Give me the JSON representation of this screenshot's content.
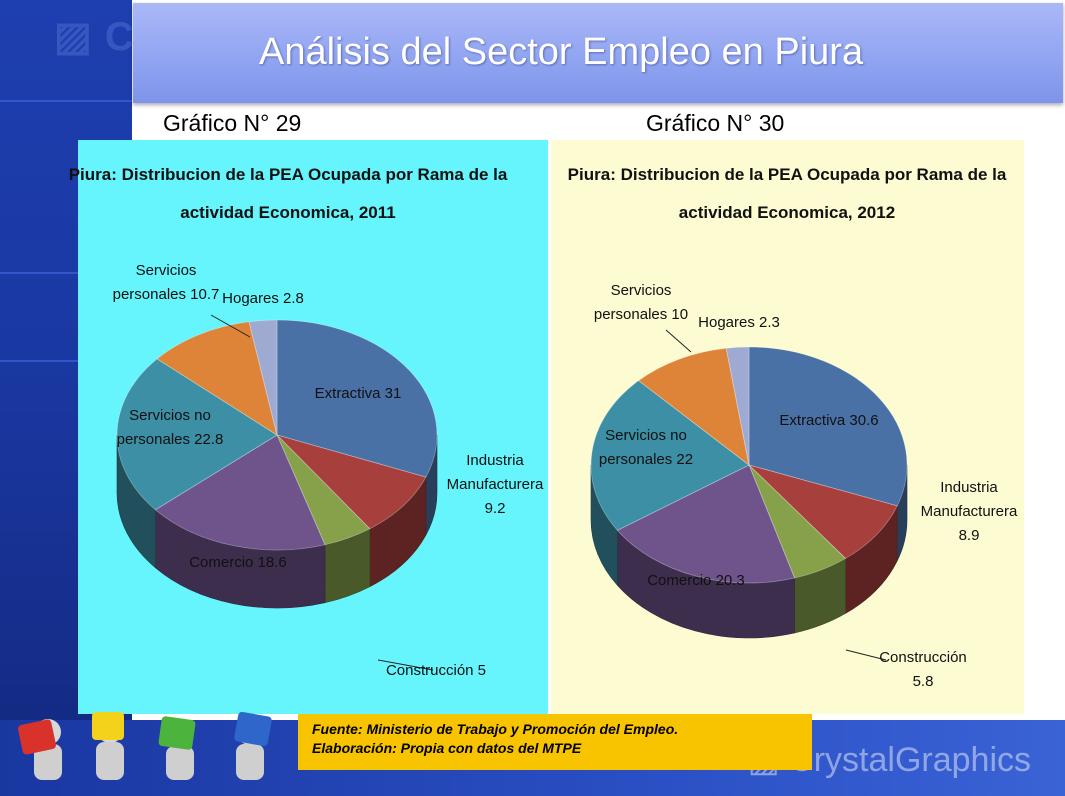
{
  "title": "Análisis del Sector Empleo en Piura",
  "chart_labels": [
    "Gráfico N° 29",
    "Gráfico N° 30"
  ],
  "source": {
    "line1": "Fuente: Ministerio de Trabajo y Promoción del Empleo.",
    "line2": "Elaboración: Propia con datos del MTPE"
  },
  "colors": {
    "panel_left_bg": "#66f5fc",
    "panel_right_bg": "#fdfbd2",
    "title_bar": "#8fa3f1",
    "source_box": "#f8c400"
  },
  "chart_data": [
    {
      "type": "pie",
      "title": "Piura: Distribucion de la PEA Ocupada por Rama de la actividad Economica, 2011",
      "title_lines": [
        "Piura: Distribucion de la PEA Ocupada por Rama de la",
        "actividad Economica, 2011"
      ],
      "slices": [
        {
          "label": "Extractiva",
          "value": 31,
          "label_lines": [
            "Extractiva 31"
          ],
          "color": "#4a71a5"
        },
        {
          "label": "Industria Manufacturera",
          "value": 9.2,
          "label_lines": [
            "Industria",
            "Manufacturera",
            "9.2"
          ],
          "color": "#a7403d"
        },
        {
          "label": "Construcción",
          "value": 5,
          "label_lines": [
            "Construcción 5"
          ],
          "color": "#87a14b"
        },
        {
          "label": "Comercio",
          "value": 18.6,
          "label_lines": [
            "Comercio 18.6"
          ],
          "color": "#6f548c"
        },
        {
          "label": "Servicios no personales",
          "value": 22.8,
          "label_lines": [
            "Servicios no",
            "personales 22.8"
          ],
          "color": "#3c8fa5"
        },
        {
          "label": "Servicios personales",
          "value": 10.7,
          "label_lines": [
            "Servicios",
            "personales 10.7"
          ],
          "color": "#de8439"
        },
        {
          "label": "Hogares",
          "value": 2.8,
          "label_lines": [
            "Hogares 2.8"
          ],
          "color": "#9eaad2"
        }
      ]
    },
    {
      "type": "pie",
      "title": "Piura: Distribucion de la PEA Ocupada por Rama de la actividad Economica, 2012",
      "title_lines": [
        "Piura: Distribucion de la PEA Ocupada por Rama de la",
        "actividad Economica, 2012"
      ],
      "slices": [
        {
          "label": "Extractiva",
          "value": 30.6,
          "label_lines": [
            "Extractiva 30.6"
          ],
          "color": "#4a71a5"
        },
        {
          "label": "Industria Manufacturera",
          "value": 8.9,
          "label_lines": [
            "Industria",
            "Manufacturera",
            "8.9"
          ],
          "color": "#a7403d"
        },
        {
          "label": "Construcción",
          "value": 5.8,
          "label_lines": [
            "Construcción",
            "5.8"
          ],
          "color": "#87a14b"
        },
        {
          "label": "Comercio",
          "value": 20.3,
          "label_lines": [
            "Comercio 20.3"
          ],
          "color": "#6f548c"
        },
        {
          "label": "Servicios no personales",
          "value": 22,
          "label_lines": [
            "Servicios no",
            "personales 22"
          ],
          "color": "#3c8fa5"
        },
        {
          "label": "Servicios personales",
          "value": 10,
          "label_lines": [
            "Servicios",
            "personales 10"
          ],
          "color": "#de8439"
        },
        {
          "label": "Hogares",
          "value": 2.3,
          "label_lines": [
            "Hogares 2.3"
          ],
          "color": "#9eaad2"
        }
      ]
    }
  ]
}
